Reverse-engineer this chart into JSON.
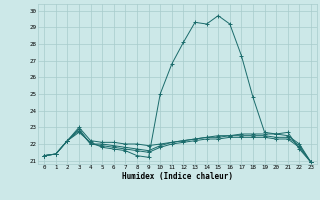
{
  "xlabel": "Humidex (Indice chaleur)",
  "ylabel": "",
  "bg_color": "#cce8e8",
  "grid_color": "#a8cccc",
  "line_color": "#1a6b6b",
  "xlim": [
    -0.5,
    23.5
  ],
  "ylim": [
    20.8,
    30.4
  ],
  "yticks": [
    21,
    22,
    23,
    24,
    25,
    26,
    27,
    28,
    29,
    30
  ],
  "xticks": [
    0,
    1,
    2,
    3,
    4,
    5,
    6,
    7,
    8,
    9,
    10,
    11,
    12,
    13,
    14,
    15,
    16,
    17,
    18,
    19,
    20,
    21,
    22,
    23
  ],
  "series": [
    {
      "x": [
        0,
        1,
        2,
        3,
        4,
        5,
        6,
        7,
        8,
        9,
        10,
        11,
        12,
        13,
        14,
        15,
        16,
        17,
        18,
        19,
        20,
        21,
        22,
        23
      ],
      "y": [
        21.3,
        21.4,
        22.2,
        22.7,
        22.1,
        21.8,
        21.7,
        21.6,
        21.3,
        21.2,
        25.0,
        26.8,
        28.1,
        29.3,
        29.2,
        29.7,
        29.2,
        27.3,
        24.8,
        22.7,
        22.6,
        22.7,
        21.7,
        20.9
      ]
    },
    {
      "x": [
        0,
        1,
        2,
        3,
        4,
        5,
        6,
        7,
        8,
        9,
        10,
        11,
        12,
        13,
        14,
        15,
        16,
        17,
        18,
        19,
        20,
        21,
        22,
        23
      ],
      "y": [
        21.3,
        21.4,
        22.2,
        23.0,
        22.2,
        22.1,
        22.1,
        22.0,
        22.0,
        21.9,
        22.0,
        22.1,
        22.2,
        22.3,
        22.4,
        22.5,
        22.5,
        22.6,
        22.6,
        22.6,
        22.6,
        22.5,
        22.0,
        20.9
      ]
    },
    {
      "x": [
        0,
        1,
        2,
        3,
        4,
        5,
        6,
        7,
        8,
        9,
        10,
        11,
        12,
        13,
        14,
        15,
        16,
        17,
        18,
        19,
        20,
        21,
        22,
        23
      ],
      "y": [
        21.3,
        21.4,
        22.2,
        22.9,
        22.0,
        22.0,
        21.9,
        21.8,
        21.7,
        21.6,
        21.9,
        22.1,
        22.2,
        22.3,
        22.4,
        22.4,
        22.5,
        22.5,
        22.5,
        22.5,
        22.4,
        22.4,
        21.9,
        20.9
      ]
    },
    {
      "x": [
        0,
        1,
        2,
        3,
        4,
        5,
        6,
        7,
        8,
        9,
        10,
        11,
        12,
        13,
        14,
        15,
        16,
        17,
        18,
        19,
        20,
        21,
        22,
        23
      ],
      "y": [
        21.3,
        21.4,
        22.2,
        22.8,
        22.0,
        21.9,
        21.8,
        21.7,
        21.6,
        21.5,
        21.8,
        22.0,
        22.1,
        22.2,
        22.3,
        22.3,
        22.4,
        22.4,
        22.4,
        22.4,
        22.3,
        22.3,
        21.8,
        20.9
      ]
    }
  ]
}
